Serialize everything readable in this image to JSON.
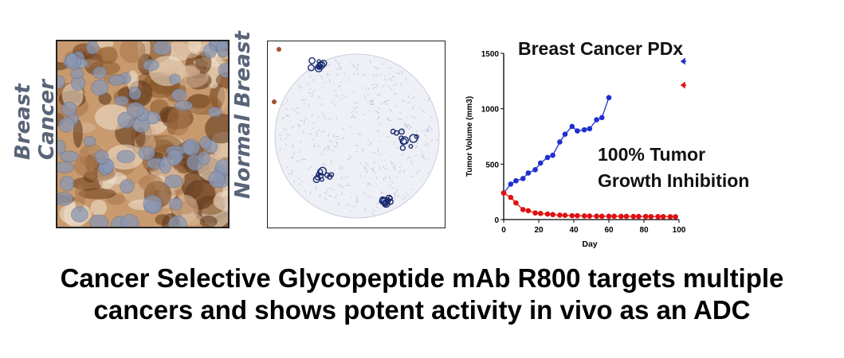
{
  "panels": {
    "cancer_label_line1": "Breast",
    "cancer_label_line2": "Cancer",
    "normal_label": "Normal Breast"
  },
  "headline": {
    "line1": "Cancer Selective Glycopeptide mAb R800 targets multiple",
    "line2": "cancers and shows potent activity in vivo as an ADC"
  },
  "colors": {
    "control": "#1f2fd0",
    "treated": "#e01010",
    "ihc_stain": "#8b5a2b",
    "normal_stain": "#1a2a6e"
  },
  "chart_data": {
    "type": "line",
    "title": "Breast Cancer PDx",
    "annotation": "100% Tumor\nGrowth Inhibition",
    "xlabel": "Day",
    "ylabel": "Tumor Volume (mm3)",
    "xlim": [
      0,
      100
    ],
    "ylim": [
      0,
      1500
    ],
    "xticks": [
      0,
      20,
      40,
      60,
      80,
      100
    ],
    "yticks": [
      0,
      500,
      1000,
      1500
    ],
    "grid": false,
    "legend": "top-right",
    "series": [
      {
        "color": "#1f2fd0",
        "marker": "circle",
        "x": [
          0,
          4,
          7,
          11,
          14,
          18,
          21,
          25,
          28,
          32,
          35,
          39,
          42,
          46,
          49,
          53,
          56,
          60
        ],
        "y": [
          240,
          320,
          350,
          370,
          420,
          450,
          510,
          560,
          580,
          700,
          770,
          840,
          800,
          810,
          820,
          900,
          920,
          1100
        ]
      },
      {
        "color": "#e01010",
        "marker": "circle",
        "x": [
          0,
          4,
          7,
          11,
          14,
          18,
          21,
          25,
          28,
          32,
          35,
          39,
          42,
          46,
          49,
          53,
          56,
          60,
          63,
          67,
          70,
          74,
          77,
          81,
          84,
          88,
          91,
          95,
          98
        ],
        "y": [
          240,
          200,
          150,
          90,
          80,
          60,
          55,
          50,
          45,
          40,
          38,
          35,
          35,
          33,
          32,
          31,
          30,
          30,
          30,
          29,
          29,
          28,
          28,
          28,
          27,
          27,
          27,
          26,
          26
        ]
      }
    ]
  }
}
